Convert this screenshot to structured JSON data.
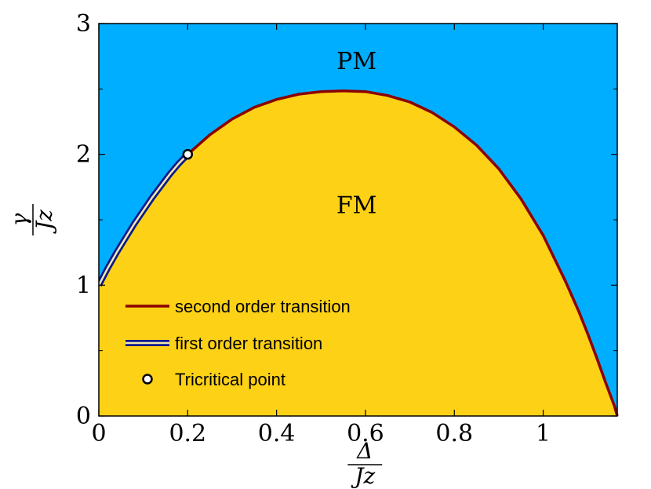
{
  "chart_data": {
    "type": "area",
    "xlim": [
      0,
      1.1667
    ],
    "ylim": [
      0,
      3
    ],
    "x_ticks": [
      {
        "value": 0,
        "label": "0"
      },
      {
        "value": 0.2,
        "label": "0.2"
      },
      {
        "value": 0.4,
        "label": "0.4"
      },
      {
        "value": 0.6,
        "label": "0.6"
      },
      {
        "value": 0.8,
        "label": "0.8"
      },
      {
        "value": 1.0,
        "label": "1"
      }
    ],
    "y_ticks": [
      {
        "value": 0,
        "label": "0"
      },
      {
        "value": 1,
        "label": "1"
      },
      {
        "value": 2,
        "label": "2"
      },
      {
        "value": 3,
        "label": "3"
      }
    ],
    "y_minor_ticks": [
      0.5,
      1.5,
      2.5
    ],
    "xlabel": {
      "numerator": "Δ",
      "denominator": "Jz"
    },
    "ylabel": {
      "numerator": "γ",
      "denominator": "Jz"
    },
    "grid": false,
    "legend_placement": "lower-left",
    "regions": [
      {
        "label": "PM",
        "color": "#00AEFF",
        "label_x": 0.58,
        "label_y": 2.7
      },
      {
        "label": "FM",
        "color": "#FCD116",
        "label_x": 0.58,
        "label_y": 1.6
      }
    ],
    "series": [
      {
        "name": "second order transition",
        "style": "solid",
        "color": "#8B0000",
        "x": [
          0.2,
          0.25,
          0.3,
          0.35,
          0.4,
          0.45,
          0.5,
          0.55,
          0.6,
          0.65,
          0.7,
          0.75,
          0.8,
          0.85,
          0.9,
          0.95,
          1.0,
          1.05,
          1.08,
          1.1,
          1.12,
          1.14,
          1.15,
          1.16,
          1.1667
        ],
        "y": [
          2.0,
          2.15,
          2.27,
          2.36,
          2.42,
          2.46,
          2.48,
          2.485,
          2.48,
          2.45,
          2.4,
          2.32,
          2.21,
          2.07,
          1.89,
          1.66,
          1.38,
          1.03,
          0.8,
          0.63,
          0.45,
          0.26,
          0.17,
          0.08,
          0.0
        ]
      },
      {
        "name": "first order transition",
        "style": "double",
        "color": "#0A1A8C",
        "x": [
          0.0,
          0.02,
          0.04,
          0.06,
          0.08,
          0.1,
          0.12,
          0.14,
          0.16,
          0.18,
          0.2
        ],
        "y": [
          1.0,
          1.13,
          1.25,
          1.36,
          1.47,
          1.57,
          1.67,
          1.76,
          1.85,
          1.93,
          2.0
        ]
      }
    ],
    "points": [
      {
        "name": "Tricritical point",
        "x": 0.2,
        "y": 2.0
      }
    ]
  },
  "colors": {
    "pm": "#00AEFF",
    "fm": "#FCD116",
    "second_order": "#8B0000",
    "first_order": "#0A1A8C"
  }
}
